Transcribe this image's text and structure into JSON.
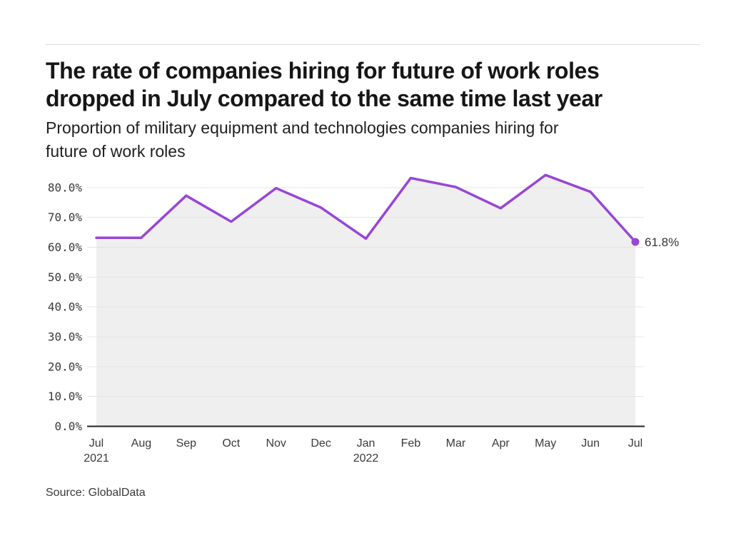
{
  "header": {
    "title_lines": [
      "The rate of companies hiring for future of work roles",
      "dropped in July compared to the same time last year"
    ],
    "subtitle_lines": [
      "Proportion of military equipment and technologies companies hiring for",
      "future of work roles"
    ]
  },
  "footer": {
    "source": "Source: GlobalData"
  },
  "chart_data": {
    "type": "line",
    "title": "The rate of companies hiring for future of work roles dropped in July compared to the same time last year",
    "subtitle": "Proportion of military equipment and technologies companies hiring for future of work roles",
    "x": [
      "Jul 2021",
      "Aug 2021",
      "Sep 2021",
      "Oct 2021",
      "Nov 2021",
      "Dec 2021",
      "Jan 2022",
      "Feb 2022",
      "Mar 2022",
      "Apr 2022",
      "May 2022",
      "Jun 2022",
      "Jul 2022"
    ],
    "series": [
      {
        "name": "Proportion of companies hiring for future of work roles",
        "values": [
          63.2,
          63.2,
          77.3,
          68.6,
          79.8,
          73.3,
          62.9,
          83.2,
          80.2,
          73.1,
          84.2,
          78.6,
          61.8
        ]
      }
    ],
    "end_label": "61.8%",
    "yticks": {
      "values": [
        0,
        10,
        20,
        30,
        40,
        50,
        60,
        70,
        80
      ],
      "labels": [
        "0.0%",
        "10.0%",
        "20.0%",
        "30.0%",
        "40.0%",
        "50.0%",
        "60.0%",
        "70.0%",
        "80.0%"
      ]
    },
    "ylim": [
      0,
      88
    ],
    "grid": true,
    "legend_position": "none",
    "area_fill": true,
    "colors": {
      "line": "#9746d6",
      "marker": "#9746d6",
      "area_fill": "#efefef",
      "gridline": "#e4e4e4",
      "axis_line": "#222222",
      "tick_text": "#3a3a3a",
      "end_label_text": "#333333"
    }
  }
}
